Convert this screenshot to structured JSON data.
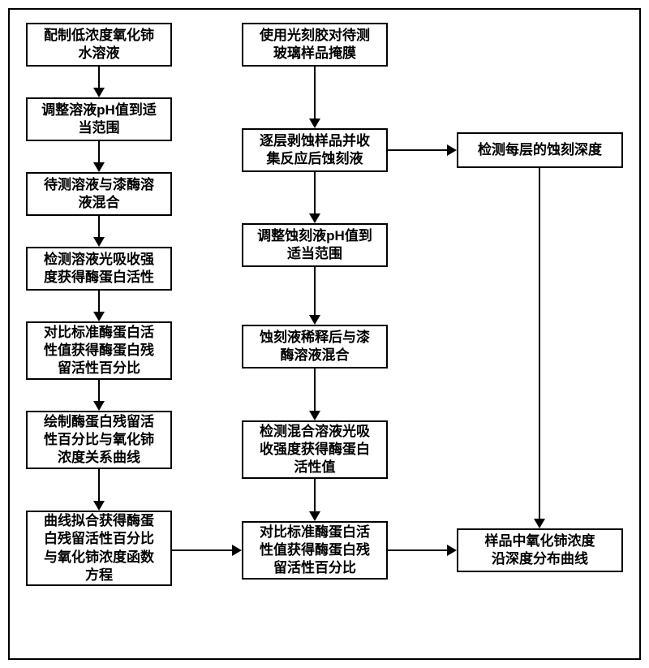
{
  "diagram": {
    "type": "flowchart",
    "background_color": "#ffffff",
    "border_color": "#000000",
    "node_border_width": 2,
    "font_size": 17,
    "font_weight": "bold",
    "nodes": {
      "a1": "配制低浓度氧化铈\n水溶液",
      "a2": "调整溶液pH值到适\n当范围",
      "a3": "待测溶液与漆酶溶\n液混合",
      "a4": "检测溶液光吸收强\n度获得酶蛋白活性",
      "a5": "对比标准酶蛋白活\n性值获得酶蛋白残\n留活性百分比",
      "a6": "绘制酶蛋白残留活\n性百分比与氧化铈\n浓度关系曲线",
      "a7": "曲线拟合获得酶蛋\n白残留活性百分比\n与氧化铈浓度函数\n方程",
      "b1": "使用光刻胶对待测\n玻璃样品掩膜",
      "b2": "逐层剥蚀样品并收\n集反应后蚀刻液",
      "b3": "调整蚀刻液pH值到\n适当范围",
      "b4": "蚀刻液稀释后与漆\n酶溶液混合",
      "b5": "检测混合溶液光吸\n收强度获得酶蛋白\n活性值",
      "b6": "对比标准酶蛋白活\n性值获得酶蛋白残\n留活性百分比",
      "c1": "检测每层的蚀刻深度",
      "c2": "样品中氧化铈浓度\n沿深度分布曲线"
    }
  }
}
